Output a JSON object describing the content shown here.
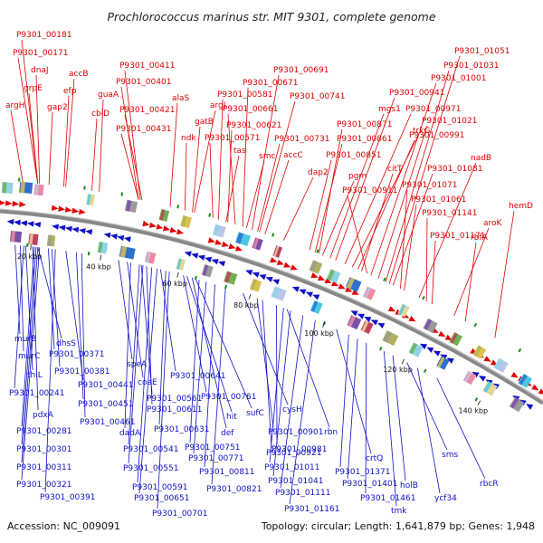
{
  "title": "Prochlorococcus marinus str. MIT 9301, complete genome",
  "footer": {
    "accession": "Accession: NC_009091",
    "summary": "Topology: circular; Length: 1,641,879 bp; Genes: 1,948"
  },
  "colors": {
    "forward": "#e00000",
    "reverse": "#1010c8",
    "backbone": "#888888",
    "rna": "#1a8a1a"
  },
  "ticks": [
    {
      "label": "20 kbp"
    },
    {
      "label": "40 kbp"
    },
    {
      "label": "60 kbp"
    },
    {
      "label": "80 kbp"
    },
    {
      "label": "100 kbp"
    },
    {
      "label": "120 kbp"
    },
    {
      "label": "140 kbp"
    }
  ],
  "top_labels": [
    {
      "text": "P9301_00181"
    },
    {
      "text": "P9301_00171"
    },
    {
      "text": "dnaJ"
    },
    {
      "text": "grpE"
    },
    {
      "text": "accB"
    },
    {
      "text": "efp"
    },
    {
      "text": "argH"
    },
    {
      "text": "gap2"
    },
    {
      "text": "cbiD"
    },
    {
      "text": "guaA"
    },
    {
      "text": "P9301_00411"
    },
    {
      "text": "P9301_00401"
    },
    {
      "text": "P9301_00421"
    },
    {
      "text": "P9301_00431"
    },
    {
      "text": "alaS"
    },
    {
      "text": "argJ"
    },
    {
      "text": "gatB"
    },
    {
      "text": "ndk"
    },
    {
      "text": "P9301_00581"
    },
    {
      "text": "P9301_00571"
    },
    {
      "text": "tas"
    },
    {
      "text": "P9301_00621"
    },
    {
      "text": "P9301_00661"
    },
    {
      "text": "P9301_00671"
    },
    {
      "text": "P9301_00691"
    },
    {
      "text": "P9301_00741"
    },
    {
      "text": "smc"
    },
    {
      "text": "accC"
    },
    {
      "text": "P9301_00731"
    },
    {
      "text": "dap2"
    },
    {
      "text": "P9301_00861"
    },
    {
      "text": "P9301_00871"
    },
    {
      "text": "P9301_00851"
    },
    {
      "text": "pgm"
    },
    {
      "text": "mgs1"
    },
    {
      "text": "P9301_00941"
    },
    {
      "text": "P9301_00971"
    },
    {
      "text": "trkG"
    },
    {
      "text": "P9301_00991"
    },
    {
      "text": "citT"
    },
    {
      "text": "P9301_00911"
    },
    {
      "text": "P9301_01001"
    },
    {
      "text": "P9301_01021"
    },
    {
      "text": "P9301_01031"
    },
    {
      "text": "P9301_01051"
    },
    {
      "text": "P9301_01081"
    },
    {
      "text": "P9301_01071"
    },
    {
      "text": "P9301_01061"
    },
    {
      "text": "nadB"
    },
    {
      "text": "P9301_01141"
    },
    {
      "text": "P9301_01171"
    },
    {
      "text": "aroK"
    },
    {
      "text": "rbfA"
    },
    {
      "text": "hemD"
    }
  ],
  "bottom_labels": [
    {
      "text": "murB"
    },
    {
      "text": "murC"
    },
    {
      "text": "dhsS"
    },
    {
      "text": "P9301_00371"
    },
    {
      "text": "thiL"
    },
    {
      "text": "P9301_00381"
    },
    {
      "text": "P9301_00241"
    },
    {
      "text": "P9301_00441"
    },
    {
      "text": "pdxA"
    },
    {
      "text": "P9301_00451"
    },
    {
      "text": "P9301_00281"
    },
    {
      "text": "P9301_00461"
    },
    {
      "text": "P9301_00301"
    },
    {
      "text": "P9301_00311"
    },
    {
      "text": "P9301_00321"
    },
    {
      "text": "P9301_00391"
    },
    {
      "text": "speA"
    },
    {
      "text": "coaE"
    },
    {
      "text": "P9301_00561"
    },
    {
      "text": "P9301_00611"
    },
    {
      "text": "dadA"
    },
    {
      "text": "P9301_00541"
    },
    {
      "text": "P9301_00551"
    },
    {
      "text": "P9301_00591"
    },
    {
      "text": "P9301_00651"
    },
    {
      "text": "P9301_00701"
    },
    {
      "text": "P9301_00641"
    },
    {
      "text": "P9301_00631"
    },
    {
      "text": "P9301_00761"
    },
    {
      "text": "hit"
    },
    {
      "text": "sufC"
    },
    {
      "text": "def"
    },
    {
      "text": "P9301_00751"
    },
    {
      "text": "P9301_00771"
    },
    {
      "text": "P9301_00811"
    },
    {
      "text": "P9301_00821"
    },
    {
      "text": "cysH"
    },
    {
      "text": "P9301_00901"
    },
    {
      "text": "P9301_00921"
    },
    {
      "text": "P9301_00981"
    },
    {
      "text": "rbn"
    },
    {
      "text": "P9301_01011"
    },
    {
      "text": "P9301_01041"
    },
    {
      "text": "P9301_01111"
    },
    {
      "text": "P9301_01161"
    },
    {
      "text": "crtQ"
    },
    {
      "text": "P9301_01371"
    },
    {
      "text": "P9301_01401"
    },
    {
      "text": "P9301_01461"
    },
    {
      "text": "tmk"
    },
    {
      "text": "holB"
    },
    {
      "text": "sms"
    },
    {
      "text": "ycf34"
    },
    {
      "text": "rbcR"
    }
  ]
}
